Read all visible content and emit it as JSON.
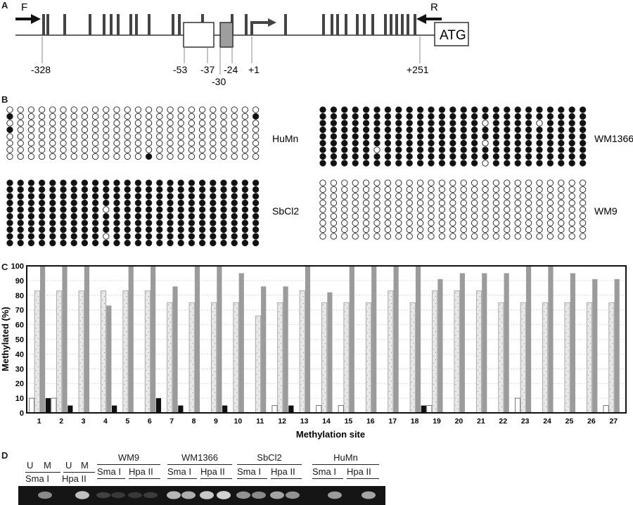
{
  "panel_labels": {
    "a": "A",
    "b": "B",
    "c": "C",
    "d": "D"
  },
  "panelA": {
    "forward_primer": "F",
    "reverse_primer": "R",
    "atg": "ATG",
    "positions": [
      "-328",
      "-53",
      "-37",
      "-24",
      "-30",
      "+1",
      "+251"
    ]
  },
  "panelB": {
    "samples": [
      {
        "name": "HuMn",
        "grid": [
          "000000000000000000000000",
          "100000000000000000000001",
          "000000000000000000000000",
          "100000000000000000000000",
          "000000000000000000000000",
          "000000000000000000000000",
          "000000000000000000000000",
          "000000000000010000000000"
        ]
      },
      {
        "name": "WM1366",
        "grid": [
          "1111111111111111111111111",
          "1111111111111111111111111",
          "1111111111111110111101111",
          "1111111111111111111111111",
          "1111111111111111111111111",
          "1111111111111110111111111",
          "1111101111111111111111111",
          "1111111111111111111111111",
          "1111111111111110111111111"
        ]
      },
      {
        "name": "SbCl2",
        "grid": [
          "111111111111111111111111",
          "111111111111111111111111",
          "111111111111111111111111",
          "111111111111111111111111",
          "111111111011111111111111",
          "111111111111111111111111",
          "111111111111111111111111",
          "111111111111111111111111",
          "111111111011111111111111",
          "111111111111111111111111"
        ]
      },
      {
        "name": "WM9",
        "grid": [
          "0000000000000000000000000",
          "0000000000000000000000000",
          "0000000000000000000000000",
          "0000000000000000000000000",
          "0000000000000000000000000",
          "0000000000000000000000000",
          "0000000000000000000000000",
          "0000000000000000000000000",
          "0000000000000000000000000"
        ]
      }
    ]
  },
  "chart_data": {
    "type": "bar",
    "xlabel": "Methylation site",
    "ylabel": "Methylated (%)",
    "ylim": [
      0,
      100
    ],
    "yticks": [
      0,
      10,
      20,
      30,
      40,
      50,
      60,
      70,
      80,
      90,
      100
    ],
    "categories": [
      "1",
      "2",
      "3",
      "4",
      "5",
      "6",
      "7",
      "8",
      "9",
      "10",
      "11",
      "12",
      "13",
      "14",
      "15",
      "16",
      "17",
      "18",
      "19",
      "20",
      "21",
      "22",
      "23",
      "24",
      "25",
      "26",
      "27"
    ],
    "grid": true,
    "series": [
      {
        "values": [
          10,
          10,
          0,
          0,
          0,
          0,
          0,
          0,
          0,
          0,
          0,
          5,
          0,
          5,
          5,
          0,
          0,
          0,
          5,
          0,
          0,
          0,
          10,
          0,
          0,
          0,
          5
        ],
        "color": "#ffffff"
      },
      {
        "values": [
          83,
          83,
          83,
          83,
          83,
          83,
          75,
          75,
          75,
          75,
          66,
          75,
          83,
          75,
          75,
          75,
          83,
          75,
          83,
          83,
          83,
          75,
          75,
          75,
          75,
          75,
          75
        ],
        "color": "#e8e8e8"
      },
      {
        "values": [
          100,
          100,
          100,
          73,
          100,
          100,
          86,
          100,
          100,
          95,
          86,
          86,
          100,
          82,
          100,
          100,
          100,
          100,
          91,
          95,
          95,
          95,
          100,
          100,
          95,
          91,
          91
        ],
        "color": "#9b9b9b"
      },
      {
        "values": [
          10,
          5,
          0,
          5,
          0,
          10,
          5,
          0,
          5,
          0,
          0,
          5,
          0,
          0,
          0,
          0,
          0,
          5,
          0,
          0,
          0,
          0,
          0,
          0,
          0,
          0,
          0
        ],
        "color": "#111111"
      }
    ]
  },
  "panelD": {
    "lanes_left": [
      {
        "top": "U",
        "bottom": "Sma I"
      },
      {
        "top": "M",
        "bottom": ""
      },
      {
        "top": "U",
        "bottom": "Hpa II"
      },
      {
        "top": "M",
        "bottom": ""
      }
    ],
    "left_enzymes": [
      "Sma I",
      "Hpa II"
    ],
    "groups": [
      {
        "name": "WM9",
        "enzymes": [
          "Sma I",
          "Hpa II"
        ]
      },
      {
        "name": "WM1366",
        "enzymes": [
          "Sma I",
          "Hpa II"
        ]
      },
      {
        "name": "SbCl2",
        "enzymes": [
          "Sma I",
          "Hpa II"
        ]
      },
      {
        "name": "HuMn",
        "enzymes": [
          "Sma I",
          "Hpa II"
        ]
      }
    ],
    "band_intensity": [
      0,
      0.55,
      0,
      0.85,
      0.15,
      0.1,
      0.1,
      0.12,
      0.8,
      0.75,
      0.9,
      0.95,
      0.6,
      0.55,
      0.7,
      0.6,
      0,
      0.65,
      0,
      0.7
    ]
  }
}
